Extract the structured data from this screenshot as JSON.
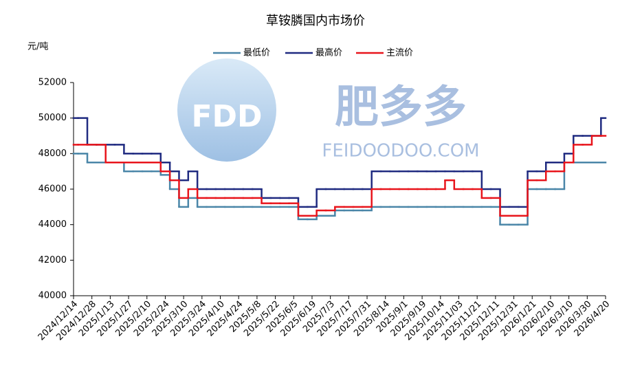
{
  "chart_data": {
    "type": "step-line",
    "title": "草铵膦国内市场价",
    "y_label": "元/吨",
    "watermark": {
      "logo": "FDD",
      "name": "肥多多",
      "site": "FEIDOODOO.COM"
    },
    "categories": [
      "2024/12/14",
      null,
      "2024/12/28",
      null,
      "2025/1/13",
      null,
      "2025/1/27",
      null,
      "2025/2/10",
      null,
      "2025/2/24",
      null,
      "2025/3/10",
      null,
      "2025/3/24",
      null,
      "2025/4/10",
      null,
      "2025/4/24",
      null,
      "2025/5/8",
      null,
      "2025/5/22",
      null,
      "2025/6/5",
      null,
      "2025/6/19",
      null,
      "2025/7/3",
      null,
      "2025/7/17",
      null,
      "2025/7/31",
      null,
      "2025/8/14",
      null,
      "2025/9/1",
      null,
      "2025/9/19",
      null,
      "2025/10/14",
      null,
      "2025/11/03",
      null,
      "2025/11/21",
      null,
      "2025/12/11",
      null,
      "2025/12/31",
      null,
      "2026/1/21",
      null,
      "2026/2/10",
      null,
      "2026/3/10",
      null,
      "2026/3/30",
      null,
      "2026/4/20"
    ],
    "series": [
      {
        "name": "最低价",
        "color": "#4a86a8",
        "values": [
          48000,
          48000,
          47500,
          47500,
          47500,
          47500,
          47000,
          47000,
          47000,
          47000,
          46800,
          46000,
          45000,
          45500,
          45000,
          45000,
          45000,
          45000,
          45000,
          45000,
          45000,
          45000,
          45000,
          45000,
          45000,
          44300,
          44300,
          44500,
          44500,
          44800,
          44800,
          44800,
          44800,
          45000,
          45000,
          45000,
          45000,
          45000,
          45000,
          45000,
          45000,
          45000,
          45000,
          45000,
          45000,
          45000,
          45000,
          44000,
          44000,
          44000,
          46000,
          46000,
          46000,
          46000,
          47500,
          47500,
          47500,
          47500,
          47500
        ]
      },
      {
        "name": "最高价",
        "color": "#1f2a80",
        "values": [
          50000,
          50000,
          48500,
          48500,
          48500,
          48500,
          48000,
          48000,
          48000,
          48000,
          47500,
          47000,
          46500,
          47000,
          46000,
          46000,
          46000,
          46000,
          46000,
          46000,
          46000,
          45500,
          45500,
          45500,
          45500,
          45000,
          45000,
          46000,
          46000,
          46000,
          46000,
          46000,
          46000,
          47000,
          47000,
          47000,
          47000,
          47000,
          47000,
          47000,
          47000,
          47000,
          47000,
          47000,
          47000,
          46000,
          46000,
          45000,
          45000,
          45000,
          47000,
          47000,
          47500,
          47500,
          48000,
          49000,
          49000,
          49000,
          50000
        ]
      },
      {
        "name": "主流价",
        "color": "#e8141b",
        "values": [
          48500,
          48500,
          48500,
          48500,
          47500,
          47500,
          47500,
          47500,
          47500,
          47500,
          47000,
          46500,
          45500,
          46000,
          45500,
          45500,
          45500,
          45500,
          45500,
          45500,
          45500,
          45200,
          45200,
          45200,
          45200,
          44500,
          44500,
          44800,
          44800,
          45000,
          45000,
          45000,
          45000,
          46000,
          46000,
          46000,
          46000,
          46000,
          46000,
          46000,
          46000,
          46500,
          46000,
          46000,
          46000,
          45500,
          45500,
          44500,
          44500,
          44500,
          46500,
          46500,
          47000,
          47000,
          47500,
          48500,
          48500,
          49000,
          49000
        ]
      }
    ],
    "ylim": [
      40000,
      52000
    ],
    "yticks": [
      40000,
      42000,
      44000,
      46000,
      48000,
      50000,
      52000
    ],
    "grid": false
  }
}
